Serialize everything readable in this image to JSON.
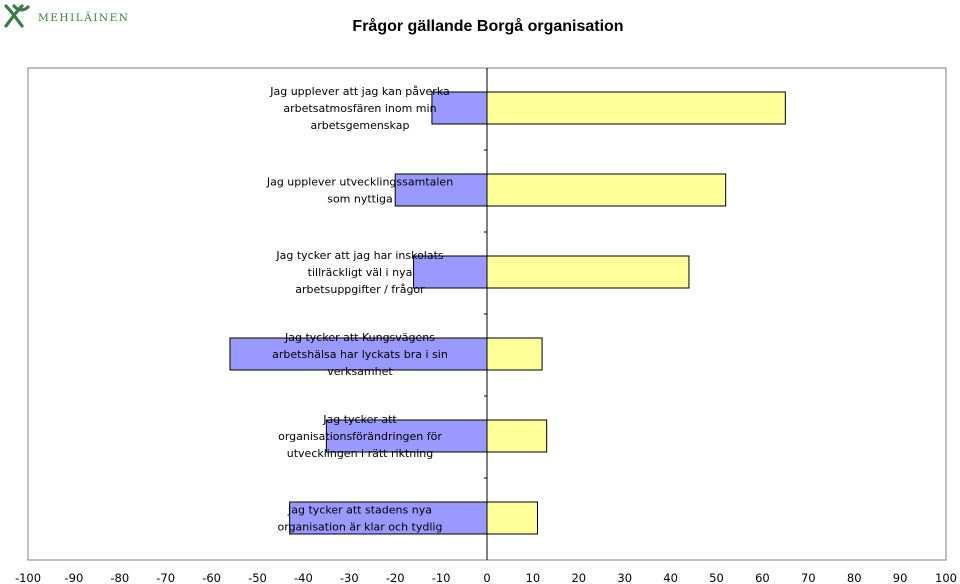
{
  "brand": {
    "name": "MEHILÄINEN"
  },
  "colors": {
    "negative": "#9999ff",
    "positive": "#ffff99",
    "plot_background": "#ffffff",
    "border": "#000000"
  },
  "chart_data": {
    "type": "bar",
    "orientation": "horizontal",
    "stacked": "diverging",
    "title": "Frågor gällande Borgå organisation",
    "xlabel": "",
    "ylabel": "",
    "xlim": [
      -100,
      100
    ],
    "xticks": [
      -100,
      -90,
      -80,
      -70,
      -60,
      -50,
      -40,
      -30,
      -20,
      -10,
      0,
      10,
      20,
      30,
      40,
      50,
      60,
      70,
      80,
      90,
      100
    ],
    "categories": [
      [
        "Jag upplever att jag kan påverka",
        "arbetsatmosfären inom min",
        "arbetsgemenskap"
      ],
      [
        "Jag upplever utvecklingssamtalen",
        "som nyttiga"
      ],
      [
        "Jag tycker att jag har inskolats",
        "tillräckligt väl i nya",
        "arbetsuppgifter / frågor"
      ],
      [
        "Jag tycker att Kungsvägens",
        "arbetshälsa har lyckats bra i sin",
        "verksamhet"
      ],
      [
        "Jag tycker att",
        "organisationsförändringen för",
        "utvecklingen i rätt riktning"
      ],
      [
        "Jag tycker att stadens nya",
        "organisation är klar och tydlig"
      ]
    ],
    "series": [
      {
        "values": [
          -12,
          -20,
          -16,
          -56,
          -35,
          -43
        ]
      },
      {
        "values": [
          65,
          52,
          44,
          12,
          13,
          11
        ]
      }
    ],
    "grid": false,
    "legend": "none"
  }
}
